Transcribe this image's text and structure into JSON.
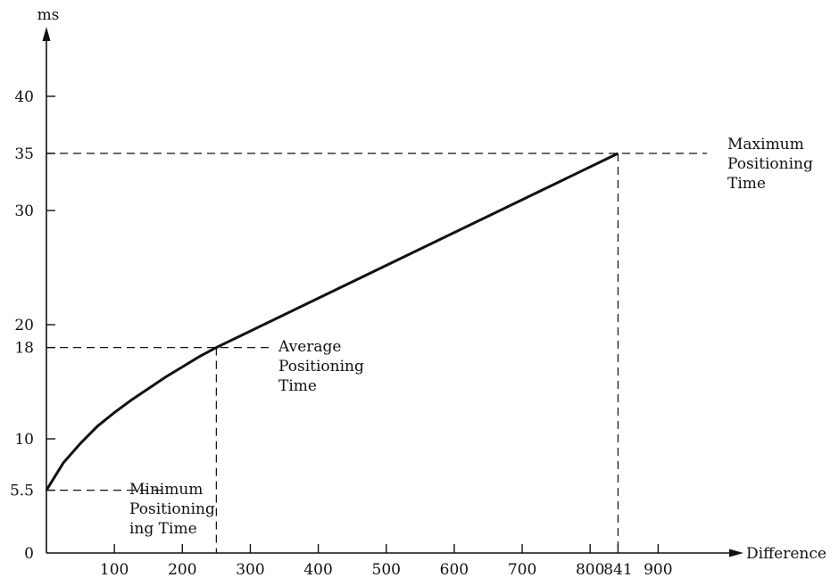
{
  "chart_data": {
    "type": "line",
    "title": "",
    "xlabel": "Difference",
    "ylabel": "ms",
    "xlim": [
      0,
      1000
    ],
    "ylim": [
      0,
      45
    ],
    "x_ticks": [
      100,
      200,
      300,
      400,
      500,
      600,
      700,
      800,
      841,
      900
    ],
    "x_tick_labels": [
      "100",
      "200",
      "300",
      "400",
      "500",
      "600",
      "700",
      "800",
      "841",
      "900"
    ],
    "y_ticks": [
      0,
      5.5,
      10,
      18,
      20,
      30,
      35,
      40
    ],
    "y_tick_labels": [
      "0",
      "5.5",
      "10",
      "18",
      "20",
      "30",
      "35",
      "40"
    ],
    "grid": false,
    "series": [
      {
        "x": [
          0,
          25,
          50,
          75,
          100,
          125,
          150,
          175,
          200,
          225,
          250,
          841
        ],
        "y": [
          5.5,
          7.9,
          9.6,
          11.1,
          12.3,
          13.4,
          14.4,
          15.4,
          16.3,
          17.2,
          18,
          35
        ]
      }
    ],
    "reference_points": [
      {
        "x": 0,
        "y": 5.5,
        "label": [
          "Minimum",
          "Positioning",
          "ing Time"
        ]
      },
      {
        "x": 250,
        "y": 18,
        "label": [
          "Average",
          "Positioning",
          "Time"
        ]
      },
      {
        "x": 841,
        "y": 35,
        "label": [
          "Maximum",
          "Positioning",
          "Time"
        ]
      }
    ]
  }
}
